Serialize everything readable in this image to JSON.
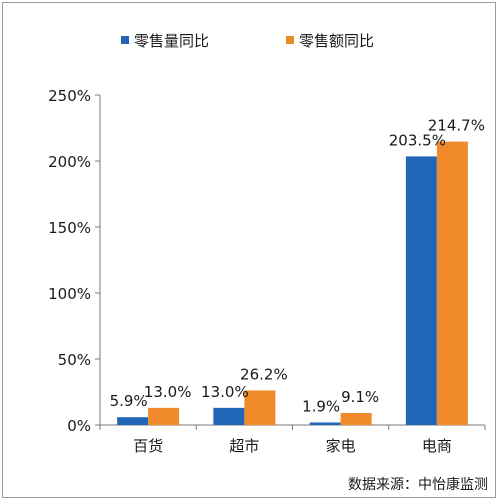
{
  "chart_data": {
    "type": "bar",
    "categories": [
      "百货",
      "超市",
      "家电",
      "电商"
    ],
    "series": [
      {
        "name": "零售量同比",
        "values": [
          5.9,
          13.0,
          1.9,
          203.5
        ],
        "labels": [
          "5.9%",
          "13.0%",
          "1.9%",
          "203.5%"
        ],
        "color": "#2266b8"
      },
      {
        "name": "零售额同比",
        "values": [
          13.0,
          26.2,
          9.1,
          214.7
        ],
        "labels": [
          "13.0%",
          "26.2%",
          "9.1%",
          "214.7%"
        ],
        "color": "#f08a2a"
      }
    ],
    "ylim": [
      0,
      250
    ],
    "yticks": [
      0,
      50,
      100,
      150,
      200,
      250
    ],
    "ytick_labels": [
      "0%",
      "50%",
      "100%",
      "150%",
      "200%",
      "250%"
    ],
    "grid": false,
    "legend": "top"
  },
  "source_note": "数据来源：中怡康监测"
}
